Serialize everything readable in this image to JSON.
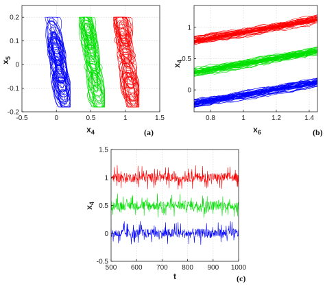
{
  "colors": {
    "blue": "#0000ff",
    "green": "#00e000",
    "red": "#ff0000"
  },
  "chart_data": [
    {
      "id": "a",
      "type": "line",
      "panel_label": "(a)",
      "xlabel": {
        "base": "x",
        "sub": "4"
      },
      "ylabel": {
        "base": "x",
        "sub": "5"
      },
      "xlim": [
        -0.5,
        1.5
      ],
      "ylim": [
        -0.2,
        0.25
      ],
      "xticks": [
        "-0.5",
        "0",
        "0.5",
        "1",
        "1.5"
      ],
      "xtick_values": [
        -0.5,
        0,
        0.5,
        1,
        1.5
      ],
      "yticks": [
        "-0.2",
        "-0.1",
        "0",
        "0.1",
        "0.2"
      ],
      "ytick_values": [
        -0.2,
        -0.1,
        0,
        0.1,
        0.2
      ],
      "grid": true,
      "series": [
        {
          "color": "blue",
          "x_center": 0.0,
          "x_range": [
            -0.15,
            0.2
          ],
          "y_range": [
            -0.18,
            0.2
          ]
        },
        {
          "color": "green",
          "x_center": 0.5,
          "x_range": [
            0.35,
            0.7
          ],
          "y_range": [
            -0.18,
            0.2
          ]
        },
        {
          "color": "red",
          "x_center": 1.0,
          "x_range": [
            0.85,
            1.2
          ],
          "y_range": [
            -0.18,
            0.2
          ]
        }
      ]
    },
    {
      "id": "b",
      "type": "line",
      "panel_label": "(b)",
      "xlabel": {
        "base": "x",
        "sub": "6"
      },
      "ylabel": {
        "base": "x",
        "sub": "4"
      },
      "xlim": [
        0.7,
        1.45
      ],
      "ylim": [
        -0.35,
        1.35
      ],
      "xticks": [
        "0.8",
        "1",
        "1.2",
        "1.4"
      ],
      "xtick_values": [
        0.8,
        1.0,
        1.2,
        1.4
      ],
      "yticks": [
        "0",
        "0.5",
        "1"
      ],
      "ytick_values": [
        0,
        0.5,
        1
      ],
      "grid": true,
      "series": [
        {
          "color": "red",
          "x_range": [
            0.7,
            1.45
          ],
          "y_start": 0.78,
          "y_end": 1.12
        },
        {
          "color": "green",
          "x_range": [
            0.7,
            1.45
          ],
          "y_start": 0.28,
          "y_end": 0.62
        },
        {
          "color": "blue",
          "x_range": [
            0.7,
            1.45
          ],
          "y_start": -0.22,
          "y_end": 0.12
        }
      ]
    },
    {
      "id": "c",
      "type": "line",
      "panel_label": "(c)",
      "xlabel": {
        "base": "t",
        "sub": ""
      },
      "ylabel": {
        "base": "x",
        "sub": "4"
      },
      "xlim": [
        500,
        1000
      ],
      "ylim": [
        -0.5,
        1.5
      ],
      "xticks": [
        "500",
        "600",
        "700",
        "800",
        "900",
        "1000"
      ],
      "xtick_values": [
        500,
        600,
        700,
        800,
        900,
        1000
      ],
      "yticks": [
        "-0.5",
        "0",
        "0.5",
        "1",
        "1.5"
      ],
      "ytick_values": [
        -0.5,
        0,
        0.5,
        1,
        1.5
      ],
      "grid": true,
      "series": [
        {
          "color": "red",
          "mean": 1.0,
          "amplitude": 0.12
        },
        {
          "color": "green",
          "mean": 0.5,
          "amplitude": 0.12
        },
        {
          "color": "blue",
          "mean": 0.0,
          "amplitude": 0.12
        }
      ]
    }
  ]
}
